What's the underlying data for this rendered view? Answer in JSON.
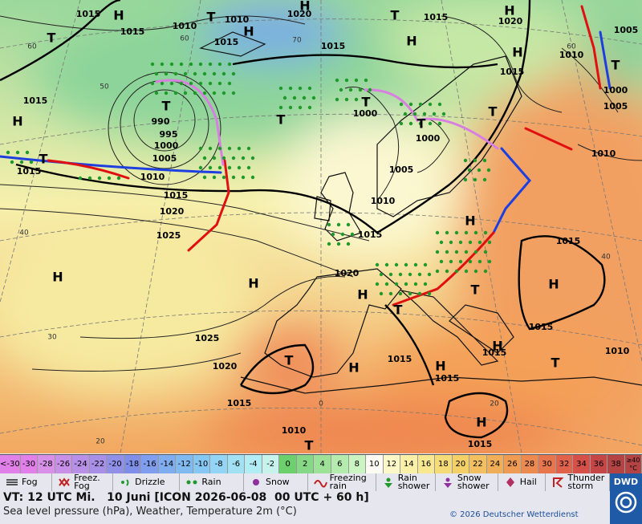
{
  "map": {
    "pressure_labels": [
      "1015",
      "1015",
      "1010",
      "1010",
      "1020",
      "1015",
      "1015",
      "1015",
      "1020",
      "1005",
      "1010",
      "1015",
      "1000",
      "1005",
      "1015",
      "990",
      "995",
      "1000",
      "1005",
      "1000",
      "1000",
      "1005",
      "1015",
      "1010",
      "1015",
      "1020",
      "1010",
      "1025",
      "1015",
      "1020",
      "1015",
      "1010",
      "1025",
      "1020",
      "1015",
      "1015",
      "1015",
      "1015",
      "1010",
      "1015",
      "1010",
      "1015"
    ],
    "latitude_labels": [
      "60",
      "60",
      "50",
      "40",
      "40",
      "30",
      "20",
      "70",
      "60",
      "0",
      "20"
    ],
    "centers": [
      "H",
      "T",
      "T",
      "H",
      "H",
      "T",
      "H",
      "H",
      "H",
      "T",
      "T",
      "T",
      "T",
      "T",
      "H",
      "T",
      "H",
      "H",
      "H",
      "H",
      "T",
      "T",
      "H",
      "H",
      "H",
      "H",
      "T",
      "H",
      "T",
      "T",
      "T"
    ]
  },
  "temperature_scale": {
    "low_label": "<-30",
    "values": [
      -30,
      -28,
      -26,
      -24,
      -22,
      -20,
      -18,
      -16,
      -14,
      -12,
      -10,
      -8,
      -6,
      -4,
      -2,
      0,
      2,
      4,
      6,
      8,
      10,
      12,
      14,
      16,
      18,
      20,
      22,
      24,
      26,
      28,
      30,
      32,
      34,
      36,
      38
    ],
    "high_label": "≥40 °C",
    "colors": [
      "#e080e8",
      "#d890e8",
      "#c890e8",
      "#b890e8",
      "#a890e8",
      "#9090e8",
      "#7f8ee8",
      "#7f9ef0",
      "#80acf0",
      "#80baf0",
      "#86c8f4",
      "#94d4f4",
      "#a2e0f4",
      "#b2ecf4",
      "#c6f4ec",
      "#6cd06c",
      "#86d886",
      "#9ee29a",
      "#b4ecae",
      "#caf4c2",
      "#fcfcf4",
      "#fcf8c8",
      "#faf0a8",
      "#f8e890",
      "#f6dc78",
      "#f4d068",
      "#f2c060",
      "#f0ae58",
      "#ee9c54",
      "#ec8a50",
      "#e8764c",
      "#e0624a",
      "#d45048",
      "#c44646",
      "#b44444"
    ]
  },
  "weather_legend": [
    "Fog",
    "Freez. Fog",
    "Drizzle",
    "Rain",
    "Snow",
    "Freezing rain",
    "Rain shower",
    "Snow shower",
    "Hail",
    "Thunder storm"
  ],
  "logo": "DWD",
  "footer": {
    "valid_time": "VT: 12 UTC Mi.   10 Juni [ICON 2026-06-08  00 UTC + 60 h]",
    "description": "Sea level pressure (hPa), Weather, Temperature 2m (°C)",
    "copyright": "© 2026 Deutscher Wetterdienst"
  }
}
